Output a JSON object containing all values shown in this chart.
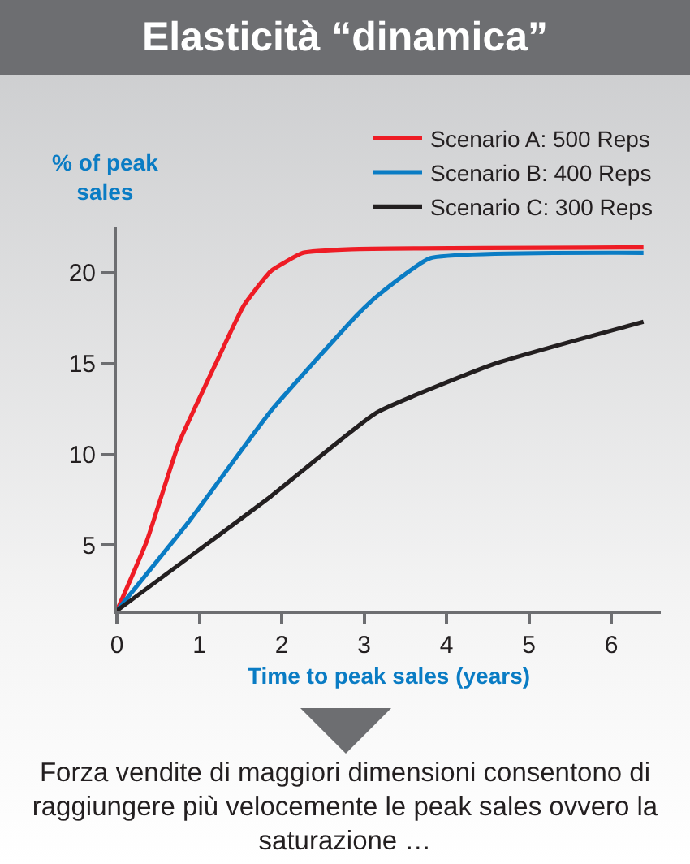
{
  "chart_data": {
    "type": "line",
    "title": "Elasticità “dinamica”",
    "xlabel": "Time to peak sales (years)",
    "ylabel": "% of peak sales",
    "annotations": [
      "Forza vendite di maggiori dimensioni consentono di raggiungere più velocemente le peak sales ovvero la saturazione …"
    ],
    "series": [
      {
        "name": "Scenario A: 500 Reps",
        "color": "#ee1c25",
        "x": [
          0,
          0.36,
          0.75,
          1.21,
          1.54,
          1.87,
          2.26,
          2.85,
          6.39
        ],
        "values": [
          1.4,
          5.2,
          10.6,
          15.1,
          18.2,
          20.1,
          21.1,
          21.3,
          21.4
        ]
      },
      {
        "name": "Scenario B: 400 Reps",
        "color": "#0a7cc4",
        "x": [
          0,
          0.89,
          1.87,
          2.92,
          3.18,
          3.8,
          6.39
        ],
        "values": [
          1.4,
          6.4,
          12.4,
          17.7,
          18.8,
          20.8,
          21.1
        ]
      },
      {
        "name": "Scenario C: 300 Reps",
        "color": "#231f20",
        "x": [
          0,
          1.87,
          3.15,
          4.59,
          6.39
        ],
        "values": [
          1.4,
          7.7,
          12.3,
          15.0,
          17.3
        ]
      }
    ],
    "xlim": [
      0,
      6.6
    ],
    "xticks": [
      0,
      1,
      2,
      3,
      4,
      5,
      6
    ],
    "ylim": [
      1.4,
      22.5
    ],
    "yticks": [
      5,
      10,
      15,
      20
    ],
    "grid": false,
    "legend": "top right",
    "marker": "none",
    "line_style": "solid"
  }
}
